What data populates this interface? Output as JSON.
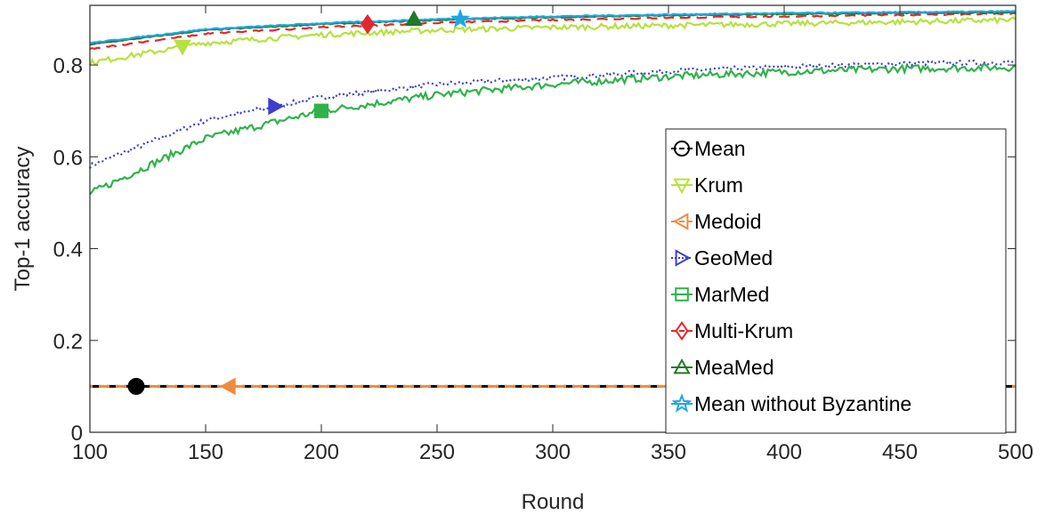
{
  "chart_data": {
    "type": "line",
    "title": "",
    "xlabel": "Round",
    "ylabel": "Top-1 accuracy",
    "xlim": [
      100,
      500
    ],
    "ylim": [
      0,
      0.93
    ],
    "xticks": [
      100,
      150,
      200,
      250,
      300,
      350,
      400,
      450,
      500
    ],
    "xtick_labels": [
      "100",
      "150",
      "200",
      "250",
      "300",
      "350",
      "400",
      "450",
      "500"
    ],
    "yticks": [
      0,
      0.2,
      0.4,
      0.6,
      0.8
    ],
    "ytick_labels": [
      "0",
      "0.2",
      "0.4",
      "0.6",
      "0.8"
    ],
    "grid": false,
    "legend_position": "bottom-right",
    "series": [
      {
        "name": "Mean",
        "color": "#000000",
        "line_style": "dashed",
        "marker": "circle",
        "marker_x": 120,
        "marker_y": 0.1,
        "x": [
          100,
          500
        ],
        "y": [
          0.1,
          0.1
        ]
      },
      {
        "name": "Krum",
        "color": "#b5e23c",
        "line_style": "solid",
        "marker": "triangle-down",
        "marker_x": 140,
        "marker_y": 0.84,
        "x": [
          100,
          150,
          200,
          250,
          300,
          350,
          400,
          450,
          500
        ],
        "y": [
          0.805,
          0.848,
          0.866,
          0.876,
          0.882,
          0.886,
          0.89,
          0.894,
          0.898
        ]
      },
      {
        "name": "Medoid",
        "color": "#f08a3c",
        "line_style": "dashed",
        "marker": "triangle-left",
        "marker_x": 160,
        "marker_y": 0.1,
        "x": [
          100,
          500
        ],
        "y": [
          0.1,
          0.1
        ]
      },
      {
        "name": "GeoMed",
        "color": "#3f3fcf",
        "line_style": "dotted",
        "marker": "triangle-right",
        "marker_x": 180,
        "marker_y": 0.71,
        "x": [
          100,
          150,
          200,
          250,
          300,
          350,
          400,
          450,
          500
        ],
        "y": [
          0.58,
          0.68,
          0.73,
          0.758,
          0.772,
          0.787,
          0.796,
          0.803,
          0.806
        ]
      },
      {
        "name": "MarMed",
        "color": "#2fb24a",
        "line_style": "solid",
        "marker": "square",
        "marker_x": 200,
        "marker_y": 0.7,
        "x": [
          100,
          150,
          200,
          250,
          300,
          350,
          400,
          450,
          500
        ],
        "y": [
          0.52,
          0.64,
          0.7,
          0.735,
          0.758,
          0.775,
          0.785,
          0.792,
          0.795
        ]
      },
      {
        "name": "Multi-Krum",
        "color": "#e3262f",
        "line_style": "dashed",
        "marker": "diamond",
        "marker_x": 220,
        "marker_y": 0.889,
        "x": [
          100,
          150,
          200,
          250,
          300,
          350,
          400,
          450,
          500
        ],
        "y": [
          0.835,
          0.868,
          0.882,
          0.892,
          0.898,
          0.903,
          0.906,
          0.909,
          0.912
        ]
      },
      {
        "name": "MeaMed",
        "color": "#1f7a2a",
        "line_style": "solid",
        "marker": "triangle-up",
        "marker_x": 240,
        "marker_y": 0.9,
        "x": [
          100,
          150,
          200,
          250,
          300,
          350,
          400,
          450,
          500
        ],
        "y": [
          0.845,
          0.876,
          0.889,
          0.898,
          0.904,
          0.908,
          0.911,
          0.913,
          0.915
        ]
      },
      {
        "name": "Mean without Byzantine",
        "color": "#1fa8e0",
        "line_style": "solid",
        "marker": "star",
        "marker_x": 260,
        "marker_y": 0.9,
        "x": [
          100,
          150,
          200,
          250,
          300,
          350,
          400,
          450,
          500
        ],
        "y": [
          0.848,
          0.878,
          0.891,
          0.9,
          0.906,
          0.91,
          0.913,
          0.915,
          0.917
        ]
      }
    ]
  }
}
